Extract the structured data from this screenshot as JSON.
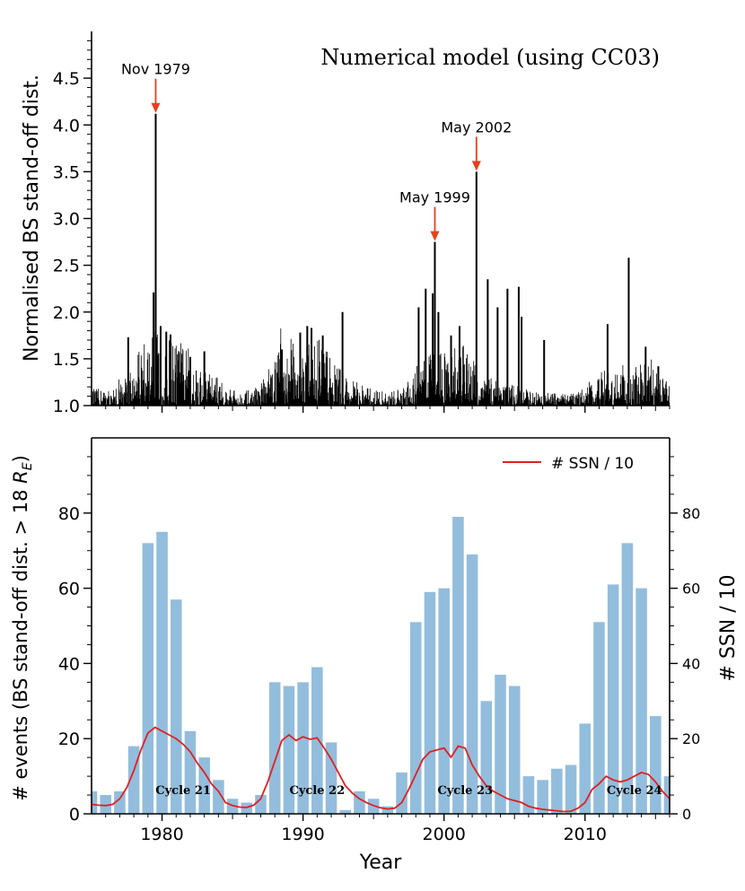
{
  "chart_data": [
    {
      "type": "line",
      "title": "Numerical model (using CC03)",
      "xlabel": "",
      "ylabel": "Normalised BS stand-off dist.",
      "xlim": [
        1975,
        2016
      ],
      "ylim": [
        1.0,
        5.0
      ],
      "yticks": [
        1.0,
        1.5,
        2.0,
        2.5,
        3.0,
        3.5,
        4.0,
        4.5
      ],
      "ytick_labels": [
        "1.0",
        "1.5",
        "2.0",
        "2.5",
        "3.0",
        "3.5",
        "4.0",
        "4.5"
      ],
      "grid": false,
      "series_color": "#000000",
      "spikes": [
        {
          "x": 1977.6,
          "y": 1.73
        },
        {
          "x": 1979.4,
          "y": 2.21
        },
        {
          "x": 1979.55,
          "y": 4.12
        },
        {
          "x": 1979.9,
          "y": 1.85
        },
        {
          "x": 1980.3,
          "y": 1.79
        },
        {
          "x": 1980.6,
          "y": 1.76
        },
        {
          "x": 1981.2,
          "y": 1.56
        },
        {
          "x": 1982.0,
          "y": 1.52
        },
        {
          "x": 1983.0,
          "y": 1.58
        },
        {
          "x": 1988.5,
          "y": 1.6
        },
        {
          "x": 1989.8,
          "y": 1.78
        },
        {
          "x": 1990.3,
          "y": 1.85
        },
        {
          "x": 1990.6,
          "y": 1.83
        },
        {
          "x": 1991.4,
          "y": 1.75
        },
        {
          "x": 1992.8,
          "y": 2.0
        },
        {
          "x": 1998.2,
          "y": 2.05
        },
        {
          "x": 1998.7,
          "y": 2.25
        },
        {
          "x": 1999.2,
          "y": 2.2
        },
        {
          "x": 1999.35,
          "y": 2.75
        },
        {
          "x": 1999.6,
          "y": 2.0
        },
        {
          "x": 2000.5,
          "y": 1.75
        },
        {
          "x": 2001.1,
          "y": 1.85
        },
        {
          "x": 2002.3,
          "y": 3.5
        },
        {
          "x": 2003.1,
          "y": 2.35
        },
        {
          "x": 2003.8,
          "y": 2.05
        },
        {
          "x": 2004.5,
          "y": 2.25
        },
        {
          "x": 2005.3,
          "y": 2.27
        },
        {
          "x": 2005.5,
          "y": 1.95
        },
        {
          "x": 2007.1,
          "y": 1.7
        },
        {
          "x": 2011.6,
          "y": 1.87
        },
        {
          "x": 2013.1,
          "y": 2.58
        },
        {
          "x": 2014.3,
          "y": 1.63
        },
        {
          "x": 2015.2,
          "y": 1.42
        }
      ],
      "annotations": [
        {
          "text": "Nov 1979",
          "x": 1979.55,
          "y": 4.12
        },
        {
          "text": "May 1999",
          "x": 1999.35,
          "y": 2.75
        },
        {
          "text": "May 2002",
          "x": 2002.3,
          "y": 3.5
        }
      ],
      "arrow_color": "#e8401c"
    },
    {
      "type": "bar",
      "xlabel": "Year",
      "ylabel": "# events (BS stand-off dist. > 18 R_E)",
      "y2label": "# SSN / 10",
      "xlim": [
        1975,
        2016
      ],
      "ylim": [
        0,
        100
      ],
      "y2lim": [
        0,
        100
      ],
      "xticks": [
        1980,
        1990,
        2000,
        2010
      ],
      "xtick_labels": [
        "1980",
        "1990",
        "2000",
        "2010"
      ],
      "yticks": [
        0,
        20,
        40,
        60,
        80
      ],
      "ytick_labels": [
        "0",
        "20",
        "40",
        "60",
        "80"
      ],
      "y2tick_labels": [
        "0",
        "20",
        "40",
        "60",
        "80"
      ],
      "bar_color": "#93bddc",
      "line_color": "#e02020",
      "legend": {
        "label": "# SSN / 10",
        "position": "top-right"
      },
      "categories": [
        1975,
        1976,
        1977,
        1978,
        1979,
        1980,
        1981,
        1982,
        1983,
        1984,
        1985,
        1986,
        1987,
        1988,
        1989,
        1990,
        1991,
        1992,
        1993,
        1994,
        1995,
        1996,
        1997,
        1998,
        1999,
        2000,
        2001,
        2002,
        2003,
        2004,
        2005,
        2006,
        2007,
        2008,
        2009,
        2010,
        2011,
        2012,
        2013,
        2014,
        2015,
        2016
      ],
      "values": [
        6,
        5,
        6,
        18,
        72,
        75,
        57,
        22,
        15,
        9,
        4,
        3,
        5,
        35,
        34,
        35,
        39,
        19,
        1,
        6,
        4,
        2,
        11,
        51,
        59,
        60,
        79,
        69,
        30,
        37,
        34,
        10,
        9,
        12,
        13,
        24,
        51,
        61,
        72,
        60,
        26,
        10
      ],
      "ssn_line": {
        "name": "# SSN / 10",
        "x": [
          1975.0,
          1975.5,
          1976.0,
          1976.5,
          1977.0,
          1977.5,
          1978.0,
          1978.5,
          1979.0,
          1979.5,
          1980.0,
          1980.5,
          1981.0,
          1981.5,
          1982.0,
          1982.5,
          1983.0,
          1983.5,
          1984.0,
          1984.5,
          1985.0,
          1985.5,
          1986.0,
          1986.5,
          1987.0,
          1987.5,
          1988.0,
          1988.5,
          1989.0,
          1989.5,
          1990.0,
          1990.5,
          1991.0,
          1991.5,
          1992.0,
          1992.5,
          1993.0,
          1993.5,
          1994.0,
          1994.5,
          1995.0,
          1995.5,
          1996.0,
          1996.5,
          1997.0,
          1997.5,
          1998.0,
          1998.5,
          1999.0,
          1999.5,
          2000.0,
          2000.5,
          2001.0,
          2001.5,
          2002.0,
          2002.5,
          2003.0,
          2003.5,
          2004.0,
          2004.5,
          2005.0,
          2005.5,
          2006.0,
          2006.5,
          2007.0,
          2007.5,
          2008.0,
          2008.5,
          2009.0,
          2009.5,
          2010.0,
          2010.5,
          2011.0,
          2011.5,
          2012.0,
          2012.5,
          2013.0,
          2013.5,
          2014.0,
          2014.5,
          2015.0,
          2015.5,
          2016.0
        ],
        "values": [
          2.5,
          2.3,
          2.2,
          2.5,
          4.0,
          7.0,
          11.5,
          17.0,
          21.5,
          23.0,
          22.0,
          21.0,
          20.0,
          18.5,
          16.5,
          13.5,
          11.0,
          8.0,
          6.0,
          3.0,
          2.2,
          1.8,
          1.7,
          2.3,
          4.0,
          8.5,
          14.0,
          19.5,
          21.0,
          19.5,
          20.5,
          19.8,
          20.2,
          17.5,
          14.5,
          11.0,
          7.5,
          5.5,
          4.0,
          3.0,
          2.2,
          1.6,
          1.3,
          1.5,
          3.0,
          6.5,
          10.5,
          14.5,
          16.5,
          17.0,
          17.5,
          15.0,
          18.0,
          17.5,
          13.0,
          10.0,
          7.5,
          6.0,
          5.0,
          4.0,
          3.5,
          3.0,
          2.0,
          1.5,
          1.2,
          1.0,
          0.8,
          0.6,
          0.7,
          1.5,
          3.0,
          6.5,
          8.0,
          10.0,
          9.0,
          8.5,
          9.0,
          10.0,
          11.0,
          10.5,
          8.5,
          6.0,
          4.0
        ]
      },
      "cycle_labels": [
        {
          "text": "Cycle 21",
          "x": 1981.5
        },
        {
          "text": "Cycle 22",
          "x": 1991.0
        },
        {
          "text": "Cycle 23",
          "x": 2001.5
        },
        {
          "text": "Cycle 24",
          "x": 2013.5
        }
      ]
    }
  ]
}
